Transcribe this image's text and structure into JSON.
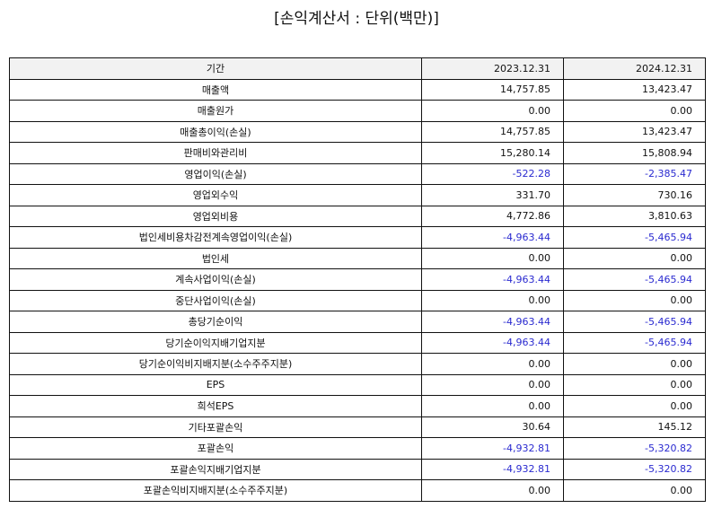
{
  "title": "[손익계산서 : 단위(백만)]",
  "header": {
    "period": "기간",
    "col1": "2023.12.31",
    "col2": "2024.12.31"
  },
  "colors": {
    "negative": "#2a2ad0",
    "text": "#111111",
    "header_bg": "#f2f2f2"
  },
  "rows": [
    {
      "label": "매출액",
      "v1": "14,757.85",
      "v2": "13,423.47"
    },
    {
      "label": "매출원가",
      "v1": "0.00",
      "v2": "0.00"
    },
    {
      "label": "매출총이익(손실)",
      "v1": "14,757.85",
      "v2": "13,423.47"
    },
    {
      "label": "판매비와관리비",
      "v1": "15,280.14",
      "v2": "15,808.94"
    },
    {
      "label": "영업이익(손실)",
      "v1": "-522.28",
      "v2": "-2,385.47"
    },
    {
      "label": "영업외수익",
      "v1": "331.70",
      "v2": "730.16"
    },
    {
      "label": "영업외비용",
      "v1": "4,772.86",
      "v2": "3,810.63"
    },
    {
      "label": "법인세비용차감전계속영업이익(손실)",
      "v1": "-4,963.44",
      "v2": "-5,465.94"
    },
    {
      "label": "법인세",
      "v1": "0.00",
      "v2": "0.00"
    },
    {
      "label": "계속사업이익(손실)",
      "v1": "-4,963.44",
      "v2": "-5,465.94"
    },
    {
      "label": "중단사업이익(손실)",
      "v1": "0.00",
      "v2": "0.00"
    },
    {
      "label": "총당기순이익",
      "v1": "-4,963.44",
      "v2": "-5,465.94"
    },
    {
      "label": "당기순이익지배기업지분",
      "v1": "-4,963.44",
      "v2": "-5,465.94"
    },
    {
      "label": "당기순이익비지배지분(소수주주지분)",
      "v1": "0.00",
      "v2": "0.00"
    },
    {
      "label": "EPS",
      "v1": "0.00",
      "v2": "0.00"
    },
    {
      "label": "희석EPS",
      "v1": "0.00",
      "v2": "0.00"
    },
    {
      "label": "기타포괄손익",
      "v1": "30.64",
      "v2": "145.12"
    },
    {
      "label": "포괄손익",
      "v1": "-4,932.81",
      "v2": "-5,320.82"
    },
    {
      "label": "포괄손익지배기업지분",
      "v1": "-4,932.81",
      "v2": "-5,320.82"
    },
    {
      "label": "포괄손익비지배지분(소수주주지분)",
      "v1": "0.00",
      "v2": "0.00"
    }
  ]
}
